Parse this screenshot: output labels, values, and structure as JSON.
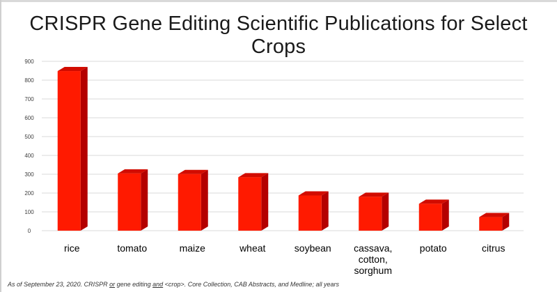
{
  "title": "CRISPR Gene Editing Scientific Publications for Select Crops",
  "footnote": {
    "p1": "As of September 23, 2020. CRISPR ",
    "u1": "or",
    "p2": " gene editing ",
    "u2": "and",
    "p3": " <crop>. Core Collection, CAB Abstracts, and Medline; all years"
  },
  "colors": {
    "bar_front": "#ff1a00",
    "bar_side": "#b40000",
    "bar_top": "#d20c00",
    "grid": "#d9d9d9",
    "tick_text": "#404040",
    "category_text": "#000000"
  },
  "chart_data": {
    "type": "bar",
    "style": "3d-column",
    "categories": [
      [
        "rice"
      ],
      [
        "tomato"
      ],
      [
        "maize"
      ],
      [
        "wheat"
      ],
      [
        "soybean"
      ],
      [
        "cassava,",
        "cotton,",
        "sorghum"
      ],
      [
        "potato"
      ],
      [
        "citrus"
      ]
    ],
    "values": [
      848,
      304,
      301,
      284,
      187,
      180,
      143,
      72
    ],
    "title": "CRISPR Gene Editing Scientific Publications for Select Crops",
    "xlabel": "",
    "ylabel": "",
    "ylim": [
      0,
      900
    ],
    "yticks": [
      0,
      100,
      200,
      300,
      400,
      500,
      600,
      700,
      800,
      900
    ],
    "grid": true,
    "legend": "none"
  }
}
